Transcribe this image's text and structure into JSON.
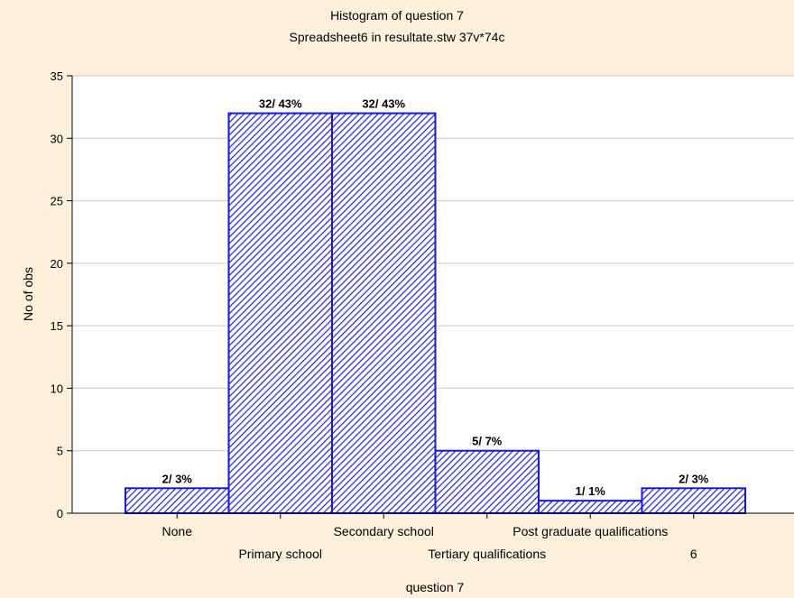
{
  "chart_data": {
    "type": "bar",
    "title": "Histogram of question 7",
    "subtitle": "Spreadsheet6 in resultate.stw  37v*74c",
    "xlabel": "question 7",
    "ylabel": "No of obs",
    "categories": [
      "None",
      "Primary school",
      "Secondary school",
      "Tertiary qualifications",
      "Post graduate qualifications",
      "6"
    ],
    "values": [
      2,
      32,
      32,
      5,
      1,
      2
    ],
    "data_labels": [
      "2/ 3%",
      "32/ 43%",
      "32/ 43%",
      "5/ 7%",
      "1/ 1%",
      "2/ 3%"
    ],
    "ylim": [
      0,
      35
    ],
    "yticks": [
      0,
      5,
      10,
      15,
      20,
      25,
      30,
      35
    ],
    "grid": true,
    "colors": {
      "bar_edge": "#1a1acd",
      "bar_hatch": "#2020d8",
      "bar_fill": "#ffffff",
      "background": "#fdf0dc",
      "plot_background": "#ffffff",
      "grid": "#c8c8c8"
    }
  }
}
